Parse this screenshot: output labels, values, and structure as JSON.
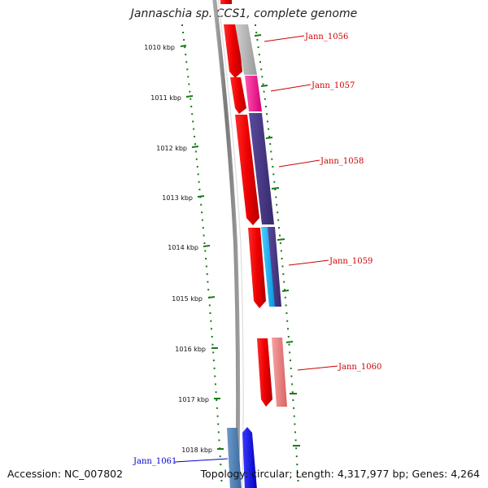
{
  "title": "Jannaschia sp. CCS1, complete genome",
  "footer": {
    "accession": "Accession: NC_007802",
    "stats": "Topology: circular; Length: 4,317,977 bp; Genes: 4,264"
  },
  "ticks": [
    "1010 kbp",
    "1011 kbp",
    "1012 kbp",
    "1013 kbp",
    "1014 kbp",
    "1015 kbp",
    "1016 kbp",
    "1017 kbp",
    "1018 kbp"
  ],
  "gene_labels": [
    {
      "name": "Jann_1056",
      "color": "#cc0000"
    },
    {
      "name": "Jann_1057",
      "color": "#cc0000"
    },
    {
      "name": "Jann_1058",
      "color": "#cc0000"
    },
    {
      "name": "Jann_1059",
      "color": "#cc0000"
    },
    {
      "name": "Jann_1060",
      "color": "#cc0000"
    },
    {
      "name": "Jann_1061",
      "color": "#0000cc"
    }
  ],
  "colors": {
    "backbone": "#8a8a8a",
    "tick_marks": "#1a7a1a",
    "forward_strand": "#ee0000",
    "jann_1056": "#b5b5b5",
    "jann_1057": "#ff1493",
    "jann_1058": "#4a3a8a",
    "jann_1059_a": "#1eb4ff",
    "jann_1059_b": "#4a3a8a",
    "jann_1060": "#f08080",
    "jann_1061_a": "#4a7fb5",
    "jann_1061_b": "#1010ee"
  }
}
